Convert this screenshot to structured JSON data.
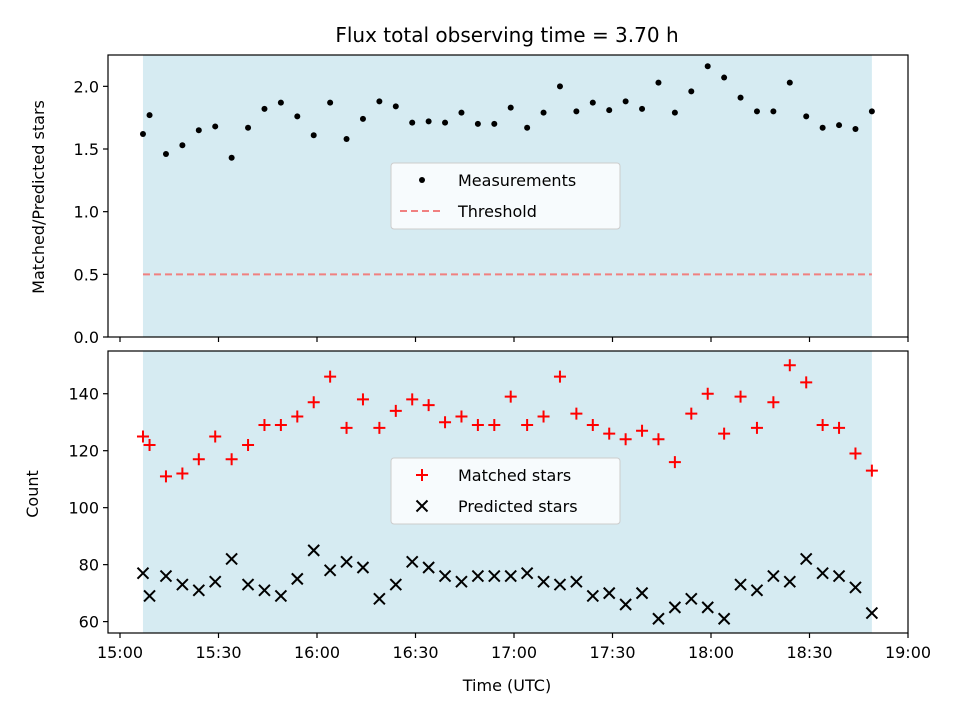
{
  "chart_data": [
    {
      "type": "scatter",
      "title": "Flux total observing time = 3.70 h",
      "ylabel": "Matched/Predicted stars",
      "xlabel": "",
      "xlim": [
        "15:00",
        "19:00"
      ],
      "ylim": [
        0,
        2.25
      ],
      "yticks": [
        "0.0",
        "0.5",
        "1.0",
        "1.5",
        "2.0"
      ],
      "shaded_span": [
        "15:07",
        "18:49"
      ],
      "shade_color": "#add8e6",
      "legend_placement": "center",
      "series": [
        {
          "name": "Measurements",
          "marker": "dot",
          "color": "#000000",
          "x": [
            "15:07",
            "15:09",
            "15:14",
            "15:19",
            "15:24",
            "15:29",
            "15:34",
            "15:39",
            "15:44",
            "15:49",
            "15:54",
            "15:59",
            "16:04",
            "16:09",
            "16:14",
            "16:19",
            "16:24",
            "16:29",
            "16:34",
            "16:39",
            "16:44",
            "16:49",
            "16:54",
            "16:59",
            "17:04",
            "17:09",
            "17:14",
            "17:19",
            "17:24",
            "17:29",
            "17:34",
            "17:39",
            "17:44",
            "17:49",
            "17:54",
            "17:59",
            "18:04",
            "18:09",
            "18:14",
            "18:19",
            "18:24",
            "18:29",
            "18:34",
            "18:39",
            "18:44",
            "18:49"
          ],
          "y": [
            1.62,
            1.77,
            1.46,
            1.53,
            1.65,
            1.68,
            1.43,
            1.67,
            1.82,
            1.87,
            1.76,
            1.61,
            1.87,
            1.58,
            1.74,
            1.88,
            1.84,
            1.71,
            1.72,
            1.71,
            1.79,
            1.7,
            1.7,
            1.83,
            1.67,
            1.79,
            2.0,
            1.8,
            1.87,
            1.81,
            1.88,
            1.82,
            2.03,
            1.79,
            1.96,
            2.16,
            2.07,
            1.91,
            1.8,
            1.8,
            2.03,
            1.76,
            1.67,
            1.69,
            1.66,
            1.8
          ]
        },
        {
          "name": "Threshold",
          "style": "dashed",
          "color": "#f08080",
          "x": [
            "15:07",
            "18:49"
          ],
          "y": [
            0.5,
            0.5
          ]
        }
      ]
    },
    {
      "type": "scatter",
      "title": "",
      "ylabel": "Count",
      "xlabel": "Time (UTC)",
      "xlim": [
        "15:00",
        "19:00"
      ],
      "xticks": [
        "15:00",
        "15:30",
        "16:00",
        "16:30",
        "17:00",
        "17:30",
        "18:00",
        "18:30",
        "19:00"
      ],
      "ylim": [
        56,
        155
      ],
      "yticks": [
        "60",
        "80",
        "100",
        "120",
        "140"
      ],
      "shaded_span": [
        "15:07",
        "18:49"
      ],
      "shade_color": "#add8e6",
      "legend_placement": "center",
      "series": [
        {
          "name": "Matched stars",
          "marker": "plus",
          "color": "#ff0000",
          "x": [
            "15:07",
            "15:09",
            "15:14",
            "15:19",
            "15:24",
            "15:29",
            "15:34",
            "15:39",
            "15:44",
            "15:49",
            "15:54",
            "15:59",
            "16:04",
            "16:09",
            "16:14",
            "16:19",
            "16:24",
            "16:29",
            "16:34",
            "16:39",
            "16:44",
            "16:49",
            "16:54",
            "16:59",
            "17:04",
            "17:09",
            "17:14",
            "17:19",
            "17:24",
            "17:29",
            "17:34",
            "17:39",
            "17:44",
            "17:49",
            "17:54",
            "17:59",
            "18:04",
            "18:09",
            "18:14",
            "18:19",
            "18:24",
            "18:29",
            "18:34",
            "18:39",
            "18:44",
            "18:49"
          ],
          "y": [
            125,
            122,
            111,
            112,
            117,
            125,
            117,
            122,
            129,
            129,
            132,
            137,
            146,
            128,
            138,
            128,
            134,
            138,
            136,
            130,
            132,
            129,
            129,
            139,
            129,
            132,
            146,
            133,
            129,
            126,
            124,
            127,
            124,
            116,
            133,
            140,
            126,
            139,
            128,
            137,
            150,
            144,
            129,
            128,
            119,
            113
          ]
        },
        {
          "name": "Predicted stars",
          "marker": "x",
          "color": "#000000",
          "x": [
            "15:07",
            "15:09",
            "15:14",
            "15:19",
            "15:24",
            "15:29",
            "15:34",
            "15:39",
            "15:44",
            "15:49",
            "15:54",
            "15:59",
            "16:04",
            "16:09",
            "16:14",
            "16:19",
            "16:24",
            "16:29",
            "16:34",
            "16:39",
            "16:44",
            "16:49",
            "16:54",
            "16:59",
            "17:04",
            "17:09",
            "17:14",
            "17:19",
            "17:24",
            "17:29",
            "17:34",
            "17:39",
            "17:44",
            "17:49",
            "17:54",
            "17:59",
            "18:04",
            "18:09",
            "18:14",
            "18:19",
            "18:24",
            "18:29",
            "18:34",
            "18:39",
            "18:44",
            "18:49"
          ],
          "y": [
            77,
            69,
            76,
            73,
            71,
            74,
            82,
            73,
            71,
            69,
            75,
            85,
            78,
            81,
            79,
            68,
            73,
            81,
            79,
            76,
            74,
            76,
            76,
            76,
            77,
            74,
            73,
            74,
            69,
            70,
            66,
            70,
            61,
            65,
            68,
            65,
            61,
            73,
            71,
            76,
            74,
            82,
            77,
            76,
            72,
            63
          ]
        }
      ]
    }
  ]
}
